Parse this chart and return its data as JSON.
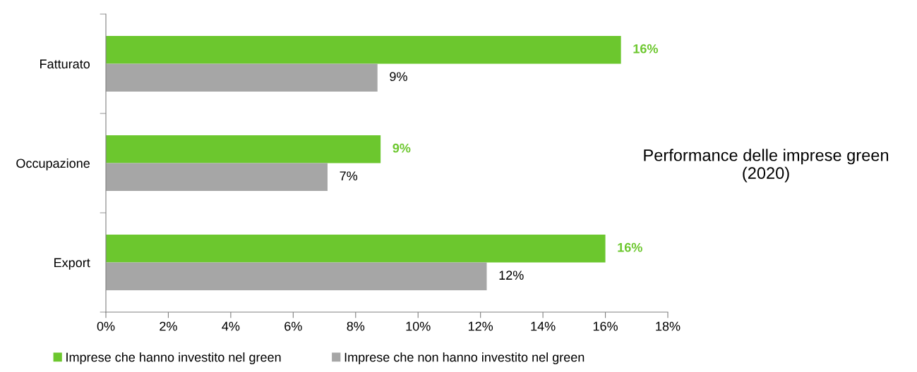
{
  "chart_data": {
    "type": "bar",
    "orientation": "horizontal",
    "title": "Performance delle imprese green\n(2020)",
    "categories": [
      "Fatturato",
      "Occupazione",
      "Export"
    ],
    "series": [
      {
        "name": "Imprese che hanno investito nel green",
        "color": "#6cc72e",
        "values": [
          16.5,
          8.8,
          16.0
        ],
        "value_labels": [
          "16%",
          "9%",
          "16%"
        ]
      },
      {
        "name": "Imprese che non hanno investito nel green",
        "color": "#a6a6a6",
        "values": [
          8.7,
          7.1,
          12.2
        ],
        "value_labels": [
          "9%",
          "7%",
          "12%"
        ]
      }
    ],
    "xlim": [
      0,
      18
    ],
    "xticks": [
      {
        "value": 0,
        "label": "0%"
      },
      {
        "value": 2,
        "label": "2%"
      },
      {
        "value": 4,
        "label": "4%"
      },
      {
        "value": 6,
        "label": "6%"
      },
      {
        "value": 8,
        "label": "8%"
      },
      {
        "value": 10,
        "label": "10%"
      },
      {
        "value": 12,
        "label": "12%"
      },
      {
        "value": 14,
        "label": "14%"
      },
      {
        "value": 16,
        "label": "16%"
      },
      {
        "value": 18,
        "label": "18%"
      }
    ],
    "grid": false,
    "legend": "bottom"
  }
}
